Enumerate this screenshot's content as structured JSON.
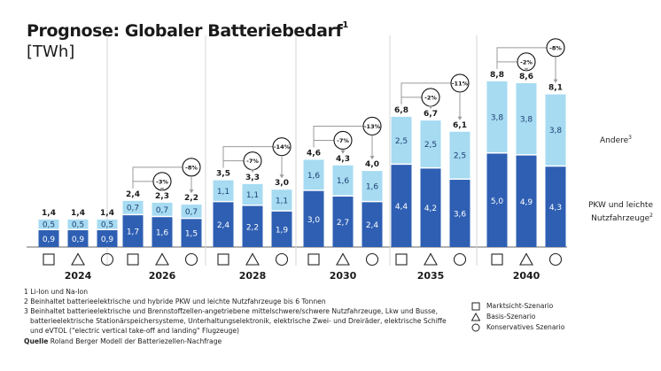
{
  "header": {
    "title": "Prognose: Globaler Batteriebedarf",
    "title_footnote": "1",
    "unit": "[TWh]"
  },
  "colors": {
    "pkw": "#2e5fb3",
    "andere": "#a6dbf2",
    "text_dark": "#1a1a1a",
    "connector": "#9a9a9a",
    "divider": "#d6d6d6",
    "axis": "#9a9a9a"
  },
  "chart_data": {
    "type": "bar",
    "stacked": true,
    "title": "Prognose: Globaler Batteriebedarf",
    "ylabel": "TWh",
    "xlabel": "",
    "categories": [
      "2024",
      "2026",
      "2028",
      "2030",
      "2035",
      "2040"
    ],
    "scenarios": [
      "Marktsicht-Szenario",
      "Basis-Szenario",
      "Konservatives Szenario"
    ],
    "scenario_symbols": [
      "square",
      "triangle",
      "circle"
    ],
    "series": [
      {
        "name": "PKW und leichte Nutzfahrzeuge",
        "footnote": "2",
        "values": [
          [
            0.9,
            0.9,
            0.9
          ],
          [
            1.7,
            1.6,
            1.5
          ],
          [
            2.4,
            2.2,
            1.9
          ],
          [
            3.0,
            2.7,
            2.4
          ],
          [
            4.4,
            4.2,
            3.6
          ],
          [
            5.0,
            4.9,
            4.3
          ]
        ]
      },
      {
        "name": "Andere",
        "footnote": "3",
        "values": [
          [
            0.5,
            0.5,
            0.5
          ],
          [
            0.7,
            0.7,
            0.7
          ],
          [
            1.1,
            1.1,
            1.1
          ],
          [
            1.6,
            1.6,
            1.6
          ],
          [
            2.5,
            2.5,
            2.5
          ],
          [
            3.8,
            3.8,
            3.8
          ]
        ]
      }
    ],
    "totals": [
      [
        1.4,
        1.4,
        1.4
      ],
      [
        2.4,
        2.3,
        2.2
      ],
      [
        3.5,
        3.3,
        3.0
      ],
      [
        4.6,
        4.3,
        4.0
      ],
      [
        6.8,
        6.7,
        6.1
      ],
      [
        8.8,
        8.6,
        8.1
      ]
    ],
    "labels": {
      "segments_pkw": [
        [
          "0,9",
          "0,9",
          "0,9"
        ],
        [
          "1,7",
          "1,6",
          "1,5"
        ],
        [
          "2,4",
          "2,2",
          "1,9"
        ],
        [
          "3,0",
          "2,7",
          "2,4"
        ],
        [
          "4,4",
          "4,2",
          "3,6"
        ],
        [
          "5,0",
          "4,9",
          "4,3"
        ]
      ],
      "segments_andere": [
        [
          "0,5",
          "0,5",
          "0,5"
        ],
        [
          "0,7",
          "0,7",
          "0,7"
        ],
        [
          "1,1",
          "1,1",
          "1,1"
        ],
        [
          "1,6",
          "1,6",
          "1,6"
        ],
        [
          "2,5",
          "2,5",
          "2,5"
        ],
        [
          "3,8",
          "3,8",
          "3,8"
        ]
      ],
      "totals": [
        [
          "1,4",
          "1,4",
          "1,4"
        ],
        [
          "2,4",
          "2,3",
          "2,2"
        ],
        [
          "3,5",
          "3,3",
          "3,0"
        ],
        [
          "4,6",
          "4,3",
          "4,0"
        ],
        [
          "6,8",
          "6,7",
          "6,1"
        ],
        [
          "8,8",
          "8,6",
          "8,1"
        ]
      ]
    },
    "annotations": [
      null,
      {
        "basis_change": "-3%",
        "konservativ_change": "-8%"
      },
      {
        "basis_change": "-7%",
        "konservativ_change": "-14%"
      },
      {
        "basis_change": "-7%",
        "konservativ_change": "-13%"
      },
      {
        "basis_change": "-2%",
        "konservativ_change": "-11%"
      },
      {
        "basis_change": "-2%",
        "konservativ_change": "-8%"
      }
    ],
    "ylim": [
      0,
      9
    ],
    "grid": false,
    "legend": "bottom-right"
  },
  "series_labels": {
    "andere": "Andere",
    "andere_fn": "3",
    "pkw_line1": "PKW und leichte",
    "pkw_line2": "Nutzfahrzeuge",
    "pkw_fn": "2"
  },
  "footnotes": [
    "1 Li-Ion und Na-Ion",
    "2 Beinhaltet batterieelektrische und hybride PKW und leichte Nutzfahrzeuge bis 6 Tonnen",
    "3 Beinhaltet batterieelektrische und Brennstoffzellen-angetriebene mittelschwere/schwere Nutzfahrzeuge, Lkw und Busse,",
    "batterieelektrische Stationärspeichersysteme, Unterhaltungselektronik, elektrische Zwei- und Dreiräder, elektrische Schiffe",
    "und eVTOL (\"electric vertical take-off and landing\" Flugzeuge)"
  ],
  "source": {
    "label": "Quelle",
    "text": "Roland Berger Modell der Batteriezellen-Nachfrage"
  },
  "legend": {
    "items": [
      {
        "symbol": "square",
        "label": "Marktsicht-Szenario"
      },
      {
        "symbol": "triangle",
        "label": "Basis-Szenario"
      },
      {
        "symbol": "circle",
        "label": "Konservatives Szenario"
      }
    ]
  }
}
